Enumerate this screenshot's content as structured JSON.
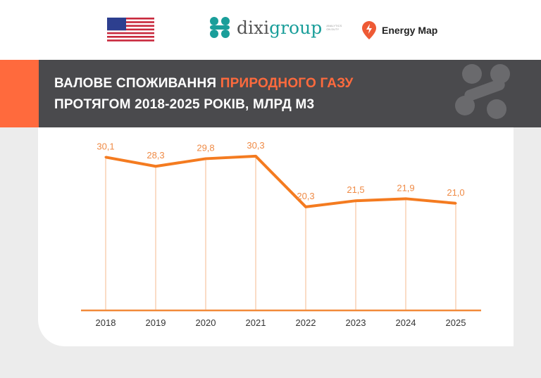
{
  "header": {
    "logo_dixi": "dixigroup",
    "logo_dixi_tag": "ANALYTICS ON DUTY",
    "logo_energy_map": "Energy Map"
  },
  "banner": {
    "title_part1": "ВАЛОВЕ СПОЖИВАННЯ ",
    "title_highlight": "ПРИРОДНОГО ГАЗУ",
    "title_line2": "ПРОТЯГОМ 2018-2025 РОКІВ, МЛРД М3"
  },
  "colors": {
    "accent": "#ff6a3d",
    "line": "#f47b20",
    "banner": "#4a4a4d",
    "teal": "#1a9e9a"
  },
  "chart_data": {
    "type": "line",
    "title": "Валове споживання природного газу протягом 2018-2025 років, млрд м3",
    "categories": [
      "2018",
      "2019",
      "2020",
      "2021",
      "2022",
      "2023",
      "2024",
      "2025"
    ],
    "values": [
      30.1,
      28.3,
      29.8,
      30.3,
      20.3,
      21.5,
      21.9,
      21.0
    ],
    "labels": [
      "30,1",
      "28,3",
      "29,8",
      "30,3",
      "20,3",
      "21,5",
      "21,9",
      "21,0"
    ],
    "ylim": [
      0,
      31
    ],
    "xlabel": "",
    "ylabel": "млрд м3",
    "grid": false
  }
}
